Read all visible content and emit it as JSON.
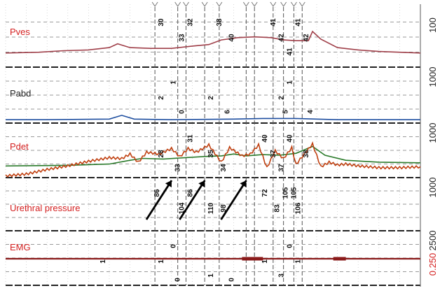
{
  "chart_data": {
    "type": "line",
    "channels": [
      {
        "name": "Pves",
        "color": "#d42020",
        "trace_color": "#a0404a",
        "scale_label": "100",
        "values": [
          [
            0,
            2
          ],
          [
            8,
            3
          ],
          [
            14,
            5
          ],
          [
            20,
            6
          ],
          [
            25,
            9
          ],
          [
            27,
            14
          ],
          [
            30,
            9
          ],
          [
            35,
            8
          ],
          [
            40,
            8
          ],
          [
            45,
            11
          ],
          [
            49,
            13
          ],
          [
            52,
            19
          ],
          [
            56,
            22
          ],
          [
            60,
            23
          ],
          [
            64,
            22
          ],
          [
            67,
            19
          ],
          [
            70,
            18
          ],
          [
            73,
            18
          ],
          [
            74,
            30
          ],
          [
            76,
            20
          ],
          [
            80,
            9
          ],
          [
            85,
            6
          ],
          [
            90,
            4
          ],
          [
            95,
            3
          ],
          [
            100,
            2
          ]
        ],
        "annotations": [
          {
            "x": 38,
            "text": "30",
            "row": 0
          },
          {
            "x": 45,
            "text": "32",
            "row": 0
          },
          {
            "x": 52,
            "text": "38",
            "row": 0
          },
          {
            "x": 65,
            "text": "41",
            "row": 0
          },
          {
            "x": 71,
            "text": "41",
            "row": 0
          },
          {
            "x": 43,
            "text": "33",
            "row": 1
          },
          {
            "x": 55,
            "text": "40",
            "row": 1
          },
          {
            "x": 67,
            "text": "42",
            "row": 1
          },
          {
            "x": 73,
            "text": "42",
            "row": 1
          },
          {
            "x": 69,
            "text": "41",
            "row": 2
          }
        ]
      },
      {
        "name": "Pabd",
        "color": "#222222",
        "trace_color": "#1f4fa0",
        "scale_label": "1000",
        "values": [
          [
            0,
            2
          ],
          [
            10,
            2
          ],
          [
            25,
            3
          ],
          [
            28,
            9
          ],
          [
            31,
            3
          ],
          [
            40,
            2
          ],
          [
            55,
            3
          ],
          [
            62,
            4
          ],
          [
            70,
            4
          ],
          [
            80,
            2
          ],
          [
            100,
            2
          ]
        ],
        "annotations": [
          {
            "x": 41,
            "text": "1",
            "row": 0
          },
          {
            "x": 69,
            "text": "1",
            "row": 0
          },
          {
            "x": 38,
            "text": "2",
            "row": 1
          },
          {
            "x": 50,
            "text": "2",
            "row": 1
          },
          {
            "x": 67,
            "text": "2",
            "row": 1
          },
          {
            "x": 43,
            "text": "0",
            "row": 2
          },
          {
            "x": 54,
            "text": "6",
            "row": 2
          },
          {
            "x": 68,
            "text": "5",
            "row": 2
          },
          {
            "x": 74,
            "text": "4",
            "row": 2
          }
        ]
      },
      {
        "name": "Pdet",
        "color": "#d42020",
        "trace_color": "#2a7a2a",
        "scale_label": "1000",
        "values": [
          [
            0,
            3
          ],
          [
            15,
            4
          ],
          [
            25,
            6
          ],
          [
            30,
            12
          ],
          [
            33,
            15
          ],
          [
            38,
            14
          ],
          [
            43,
            16
          ],
          [
            48,
            18
          ],
          [
            52,
            19
          ],
          [
            55,
            22
          ],
          [
            58,
            19
          ],
          [
            62,
            21
          ],
          [
            66,
            20
          ],
          [
            70,
            23
          ],
          [
            74,
            34
          ],
          [
            77,
            20
          ],
          [
            82,
            12
          ],
          [
            90,
            9
          ],
          [
            100,
            8
          ]
        ],
        "annotations": [
          {
            "x": 45,
            "text": "31",
            "row": 0
          },
          {
            "x": 63,
            "text": "40",
            "row": 0
          },
          {
            "x": 69,
            "text": "40",
            "row": 0
          },
          {
            "x": 38,
            "text": "28",
            "row": 1
          },
          {
            "x": 50,
            "text": "35",
            "row": 1
          },
          {
            "x": 65,
            "text": "37",
            "row": 1
          },
          {
            "x": 73,
            "text": "38",
            "row": 1
          },
          {
            "x": 42,
            "text": "33",
            "row": 2
          },
          {
            "x": 53,
            "text": "34",
            "row": 2
          },
          {
            "x": 67,
            "text": "37",
            "row": 2
          }
        ]
      },
      {
        "name": "Urethral pressure",
        "color": "#d42020",
        "trace_color": "#c04010",
        "scale_label": "1000",
        "values": [
          [
            0,
            10
          ],
          [
            5,
            14
          ],
          [
            10,
            24
          ],
          [
            15,
            32
          ],
          [
            20,
            42
          ],
          [
            25,
            50
          ],
          [
            28,
            48
          ],
          [
            30,
            58
          ],
          [
            32,
            40
          ],
          [
            34,
            62
          ],
          [
            37,
            58
          ],
          [
            40,
            70
          ],
          [
            42,
            52
          ],
          [
            44,
            70
          ],
          [
            46,
            62
          ],
          [
            49,
            78
          ],
          [
            52,
            40
          ],
          [
            54,
            72
          ],
          [
            57,
            54
          ],
          [
            59,
            58
          ],
          [
            61,
            78
          ],
          [
            63,
            28
          ],
          [
            65,
            65
          ],
          [
            67,
            48
          ],
          [
            69,
            72
          ],
          [
            70,
            35
          ],
          [
            72,
            58
          ],
          [
            74,
            80
          ],
          [
            76,
            30
          ],
          [
            78,
            40
          ],
          [
            80,
            34
          ],
          [
            82,
            36
          ],
          [
            85,
            32
          ],
          [
            90,
            28
          ],
          [
            95,
            28
          ],
          [
            100,
            30
          ]
        ],
        "annotations": [
          {
            "x": 37,
            "text": "86",
            "row": 0
          },
          {
            "x": 45,
            "text": "86",
            "row": 0
          },
          {
            "x": 63,
            "text": "72",
            "row": 0
          },
          {
            "x": 68,
            "text": "105",
            "row": 0
          },
          {
            "x": 70,
            "text": "105",
            "row": 0
          },
          {
            "x": 43,
            "text": "104",
            "row": 1
          },
          {
            "x": 50,
            "text": "110",
            "row": 1
          },
          {
            "x": 53,
            "text": "98",
            "row": 1
          },
          {
            "x": 66,
            "text": "83",
            "row": 1
          },
          {
            "x": 71,
            "text": "106",
            "row": 1
          }
        ]
      },
      {
        "name": "EMG",
        "color": "#d42020",
        "trace_color": "#8a1a1a",
        "scale_label": "2500",
        "values": [
          [
            0,
            0
          ],
          [
            100,
            0
          ]
        ],
        "annotations": [
          {
            "x": 41,
            "text": "0",
            "row": 0
          },
          {
            "x": 69,
            "text": "0",
            "row": 0
          },
          {
            "x": 24,
            "text": "1",
            "row": 1
          },
          {
            "x": 38,
            "text": "1",
            "row": 1
          },
          {
            "x": 63,
            "text": "1",
            "row": 1
          },
          {
            "x": 71,
            "text": "1",
            "row": 1
          },
          {
            "x": 50,
            "text": "1",
            "row": 2
          },
          {
            "x": 67,
            "text": "3",
            "row": 2
          },
          {
            "x": 42,
            "text": "0",
            "row": 3
          },
          {
            "x": 55,
            "text": "0",
            "row": 3
          }
        ]
      }
    ],
    "bottom_scale_label": "0.250",
    "event_markers_x": [
      36,
      41.5,
      43.5,
      48,
      51.5,
      58,
      60,
      64.5,
      67,
      69.5,
      71.5
    ],
    "arrows_x": [
      38,
      46,
      56
    ]
  }
}
